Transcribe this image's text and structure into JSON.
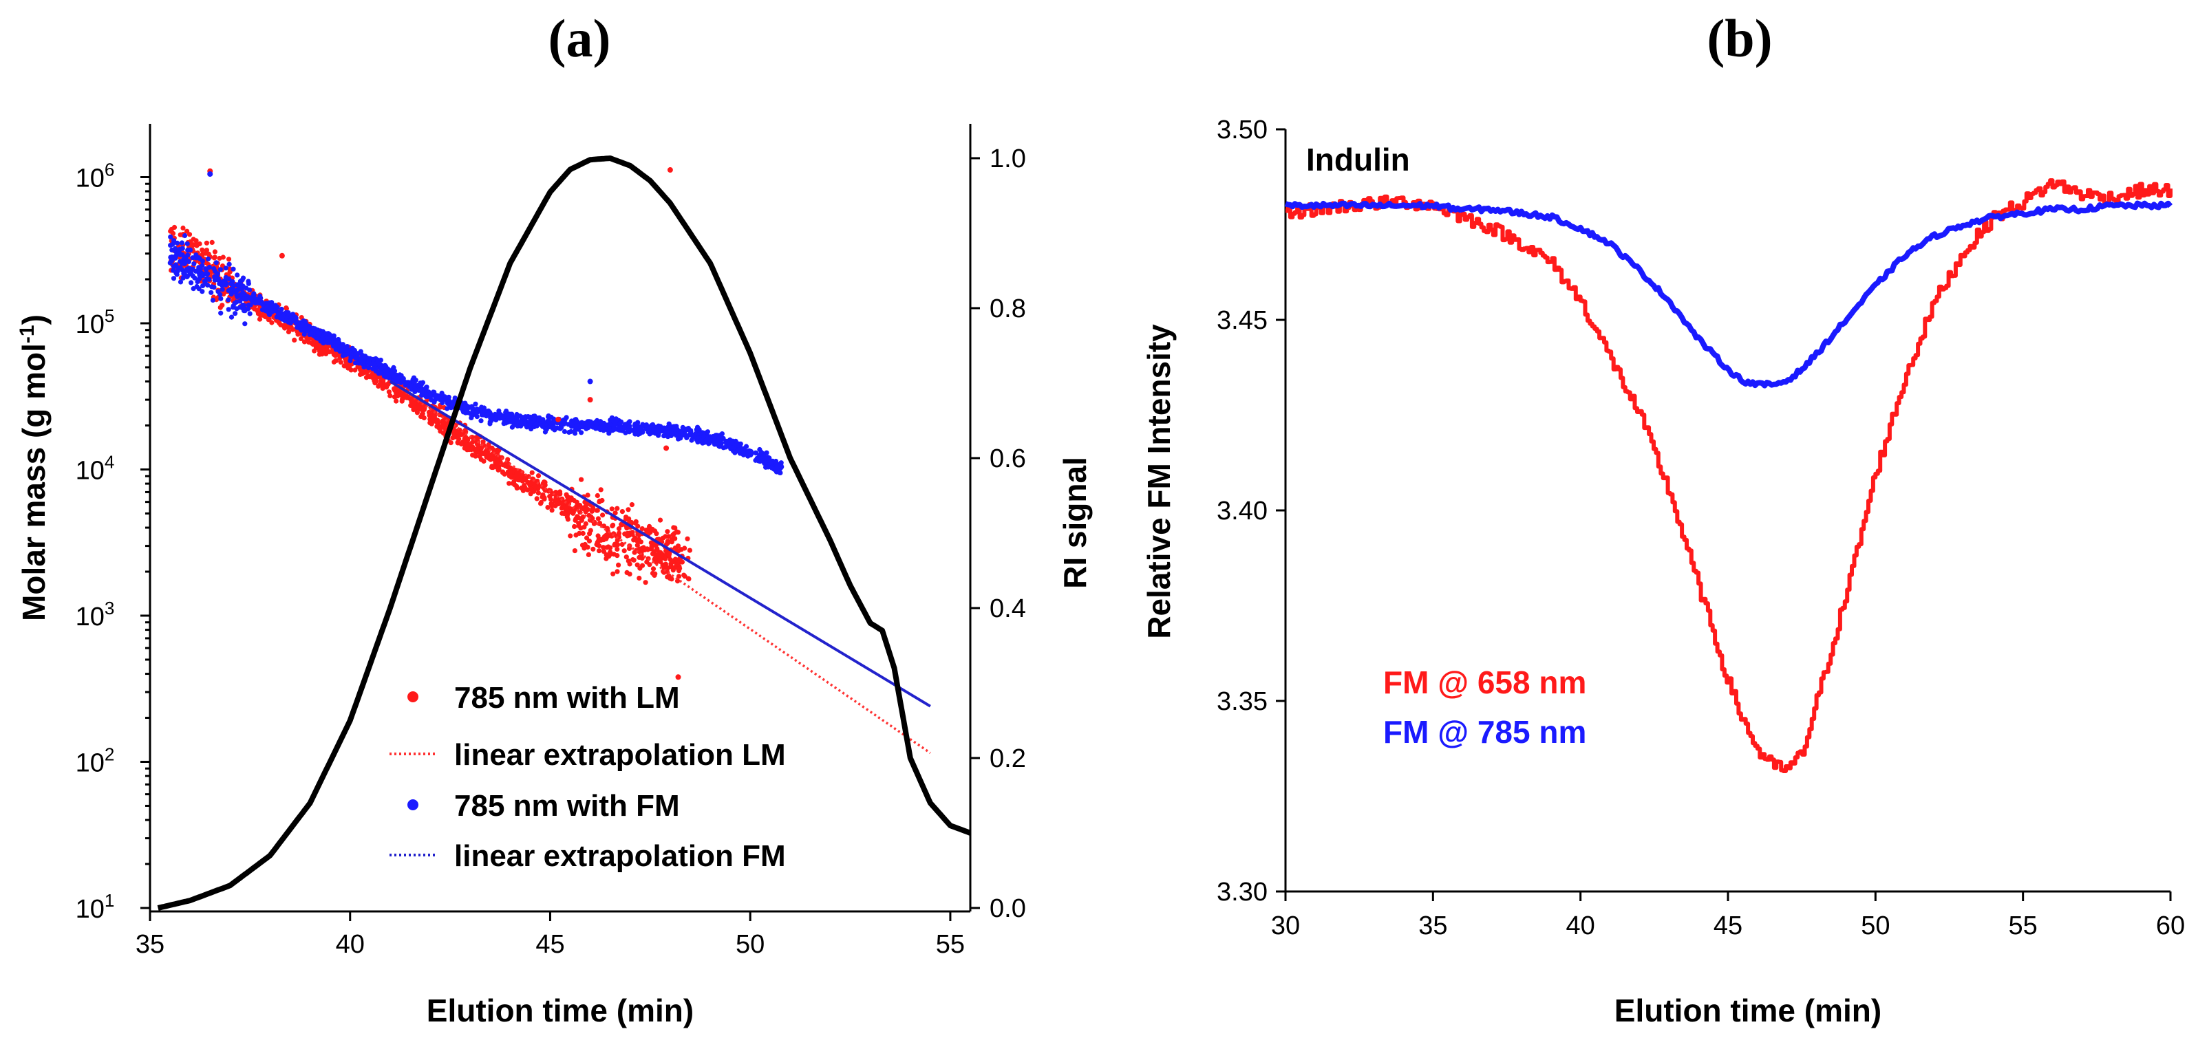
{
  "chart_data": [
    {
      "panel": "(a)",
      "type": "scatter",
      "xlabel": "Elution time (min)",
      "ylabel": "Molar mass (g mol",
      "ylabel_sup": "-1",
      "y2label": "RI signal",
      "xlim": [
        35,
        55.5
      ],
      "ylim_log10": [
        1,
        6.2
      ],
      "y2lim": [
        0,
        1.05
      ],
      "xticks": [
        "35",
        "40",
        "45",
        "50",
        "55"
      ],
      "yticks": [
        {
          "base": "10",
          "exp": "1"
        },
        {
          "base": "10",
          "exp": "2"
        },
        {
          "base": "10",
          "exp": "3"
        },
        {
          "base": "10",
          "exp": "4"
        },
        {
          "base": "10",
          "exp": "5"
        },
        {
          "base": "10",
          "exp": "6"
        }
      ],
      "y2ticks": [
        "0.0",
        "0.2",
        "0.4",
        "0.6",
        "0.8",
        "1.0"
      ],
      "series": [
        {
          "name": "785 nm with LM",
          "kind": "scatter",
          "color": "#ff1a1a",
          "x": [
            35.5,
            36.0,
            36.5,
            37.0,
            37.5,
            38.0,
            39.0,
            40.0,
            41.0,
            42.0,
            43.0,
            44.0,
            45.0,
            46.0,
            47.0,
            48.0,
            48.5
          ],
          "y": [
            330000,
            300000,
            230000,
            180000,
            140000,
            120000,
            80000,
            55000,
            38000,
            24000,
            15000,
            9500,
            6500,
            4300,
            3300,
            2500,
            2300
          ]
        },
        {
          "name": "linear extrapolation LM",
          "kind": "line",
          "style": "dotted",
          "color": "#ff3333",
          "x": [
            41.0,
            54.5
          ],
          "y": [
            40000,
            115
          ]
        },
        {
          "name": "785 nm with FM",
          "kind": "scatter",
          "color": "#1a1aff",
          "x": [
            35.5,
            36.0,
            36.5,
            37.0,
            37.5,
            38.0,
            39.0,
            40.0,
            41.0,
            42.0,
            43.0,
            44.0,
            45.0,
            46.0,
            47.0,
            48.0,
            49.0,
            50.0,
            50.8
          ],
          "y": [
            300000,
            240000,
            190000,
            165000,
            150000,
            125000,
            90000,
            62000,
            45000,
            33000,
            25000,
            22000,
            20500,
            20000,
            19500,
            18500,
            16500,
            13000,
            10000
          ]
        },
        {
          "name": "linear extrapolation FM",
          "kind": "line",
          "style": "dotted",
          "color": "#2222cc",
          "x": [
            41.0,
            54.5
          ],
          "y": [
            40000,
            240
          ]
        },
        {
          "name": "RI signal",
          "kind": "line",
          "axis": "right",
          "color": "#000000",
          "x": [
            35.2,
            36.0,
            37.0,
            38.0,
            39.0,
            40.0,
            41.0,
            42.0,
            43.0,
            44.0,
            45.0,
            45.5,
            46.0,
            46.5,
            47.0,
            47.5,
            48.0,
            49.0,
            50.0,
            51.0,
            52.0,
            52.5,
            53.0,
            53.3,
            53.6,
            54.0,
            54.5,
            55.0,
            55.5
          ],
          "y": [
            0.0,
            0.01,
            0.03,
            0.07,
            0.14,
            0.25,
            0.4,
            0.56,
            0.72,
            0.86,
            0.955,
            0.985,
            0.998,
            1.0,
            0.99,
            0.97,
            0.94,
            0.86,
            0.74,
            0.6,
            0.49,
            0.43,
            0.38,
            0.37,
            0.32,
            0.2,
            0.14,
            0.11,
            0.1
          ]
        }
      ],
      "legend": [
        {
          "label": "785 nm with LM",
          "marker": "dot",
          "color": "#ff1a1a"
        },
        {
          "label": "linear extrapolation LM",
          "marker": "dotted-line",
          "color": "#ff3333"
        },
        {
          "label": "785 nm with FM",
          "marker": "dot",
          "color": "#1a1aff"
        },
        {
          "label": "linear extrapolation FM",
          "marker": "dotted-line",
          "color": "#2222cc"
        }
      ],
      "legend_position": "lower-center"
    },
    {
      "panel": "(b)",
      "type": "line",
      "xlabel": "Elution time (min)",
      "ylabel": "Relative FM Intensity",
      "xlim": [
        30,
        60
      ],
      "ylim": [
        3.3,
        3.5
      ],
      "xticks": [
        "30",
        "35",
        "40",
        "45",
        "50",
        "55",
        "60"
      ],
      "yticks": [
        "3.30",
        "3.35",
        "3.40",
        "3.45",
        "3.50"
      ],
      "annotation": "Indulin",
      "series": [
        {
          "name": "FM @ 658 nm",
          "color": "#ff1a1a",
          "x": [
            30,
            32,
            34,
            35,
            36,
            37,
            38,
            39,
            40,
            41,
            42,
            43,
            44,
            45,
            45.5,
            46,
            46.5,
            47,
            47.5,
            48,
            49,
            50,
            51,
            52,
            53,
            54,
            55,
            56,
            57,
            58,
            59,
            60
          ],
          "y": [
            3.478,
            3.48,
            3.481,
            3.48,
            3.477,
            3.474,
            3.47,
            3.465,
            3.455,
            3.44,
            3.425,
            3.405,
            3.38,
            3.355,
            3.345,
            3.337,
            3.333,
            3.332,
            3.336,
            3.35,
            3.378,
            3.41,
            3.435,
            3.455,
            3.468,
            3.477,
            3.481,
            3.486,
            3.483,
            3.482,
            3.484,
            3.484
          ]
        },
        {
          "name": "FM @ 785 nm",
          "color": "#1a1aff",
          "x": [
            30,
            32,
            34,
            35,
            36,
            37,
            38,
            39,
            40,
            41,
            42,
            43,
            44,
            45,
            45.5,
            46,
            46.5,
            47,
            47.5,
            48,
            49,
            50,
            51,
            52,
            53,
            54,
            55,
            56,
            57,
            58,
            59,
            60
          ],
          "y": [
            3.48,
            3.48,
            3.48,
            3.48,
            3.479,
            3.479,
            3.478,
            3.477,
            3.474,
            3.47,
            3.463,
            3.455,
            3.445,
            3.437,
            3.434,
            3.433,
            3.433,
            3.434,
            3.437,
            3.441,
            3.45,
            3.459,
            3.467,
            3.472,
            3.475,
            3.477,
            3.478,
            3.479,
            3.479,
            3.48,
            3.48,
            3.48
          ]
        }
      ],
      "legend_position": "lower-left"
    }
  ]
}
